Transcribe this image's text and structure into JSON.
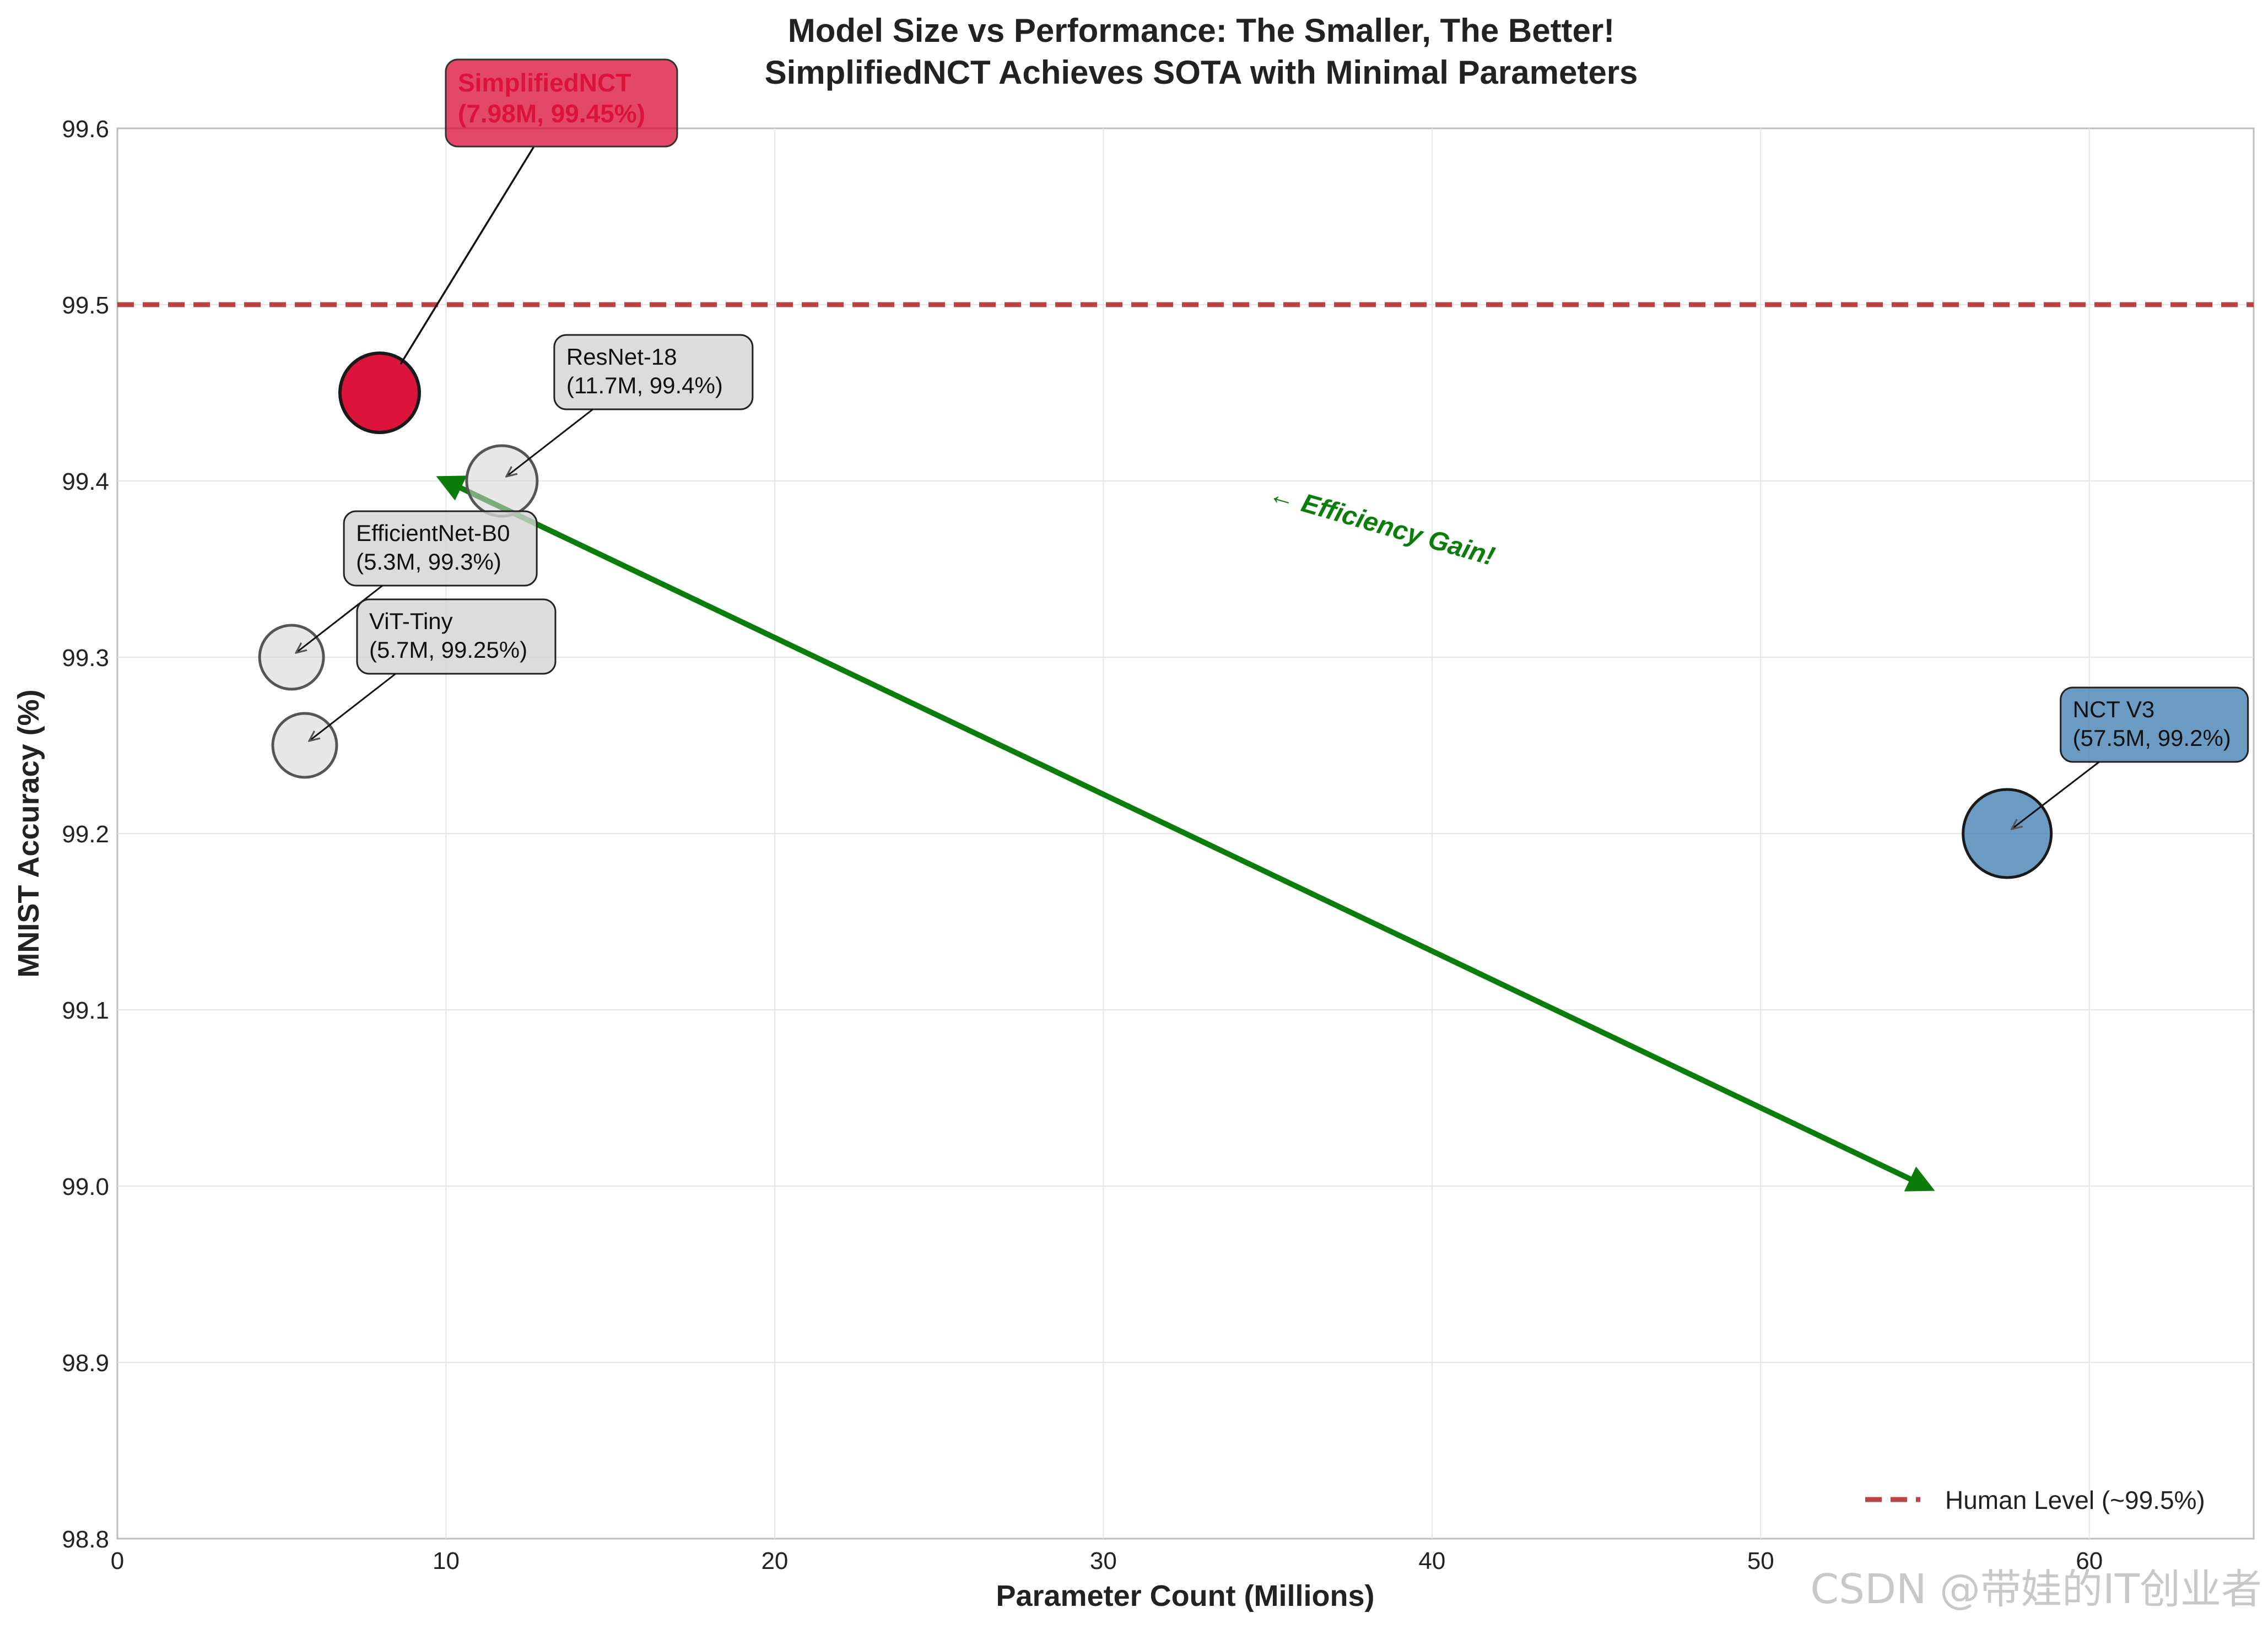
{
  "chart_data": {
    "type": "scatter",
    "title": "Model Size vs Performance: The Smaller, The Better!",
    "subtitle": "SimplifiedNCT Achieves SOTA with Minimal Parameters",
    "xlabel": "Parameter Count (Millions)",
    "ylabel": "MNIST Accuracy (%)",
    "xlim": [
      0,
      65
    ],
    "ylim": [
      98.8,
      99.6
    ],
    "xticks": [
      0,
      10,
      20,
      30,
      40,
      50,
      60
    ],
    "yticks": [
      98.8,
      98.9,
      99.0,
      99.1,
      99.2,
      99.3,
      99.4,
      99.5,
      99.6
    ],
    "grid": true,
    "legend_placement": "lower-right",
    "points": [
      {
        "label": "SimplifiedNCT",
        "annotation": "(7.98M, 99.45%)",
        "x": 7.98,
        "y": 99.45,
        "color": "#dc143c",
        "highlight": true
      },
      {
        "label": "ResNet-18",
        "annotation": "(11.7M, 99.4%)",
        "x": 11.7,
        "y": 99.4,
        "color": "#d3d3d3",
        "highlight": false
      },
      {
        "label": "EfficientNet-B0",
        "annotation": "(5.3M, 99.3%)",
        "x": 5.3,
        "y": 99.3,
        "color": "#d3d3d3",
        "highlight": false
      },
      {
        "label": "ViT-Tiny",
        "annotation": "(5.7M, 99.25%)",
        "x": 5.7,
        "y": 99.25,
        "color": "#d3d3d3",
        "highlight": false
      },
      {
        "label": "NCT V3",
        "annotation": "(57.5M, 99.2%)",
        "x": 57.5,
        "y": 99.2,
        "color": "#4682b4",
        "highlight": false
      }
    ],
    "reference_line": {
      "y": 99.5,
      "label": "Human Level (~99.5%)",
      "color": "#b22222",
      "style": "dashed"
    },
    "efficiency_arrow": {
      "from": [
        55,
        99.0
      ],
      "to": [
        10,
        99.4
      ],
      "color": "#008000"
    },
    "efficiency_text": "← Efficiency Gain!",
    "watermark": "CSDN @带娃的IT创业者"
  }
}
